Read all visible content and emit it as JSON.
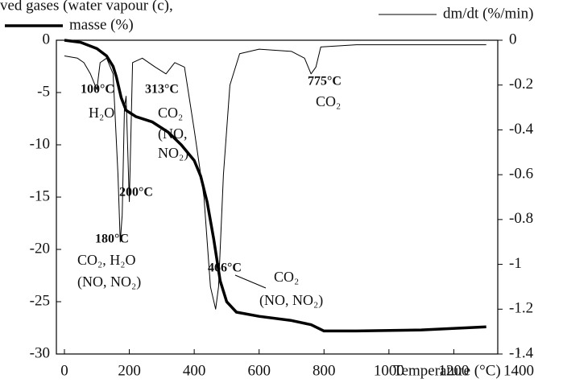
{
  "chart_data": {
    "type": "line",
    "title": "ved gases (water vapour (c), ",
    "x_label": "Temperature (°C)",
    "xlim": [
      0,
      1400
    ],
    "xticks": [
      0,
      200,
      400,
      600,
      800,
      1000,
      1200,
      1400
    ],
    "ylim": [
      -30,
      0
    ],
    "yticks": [
      0,
      -5,
      -10,
      -15,
      -20,
      -25,
      -30
    ],
    "y2lim": [
      -1.4,
      0
    ],
    "y2ticks": [
      0,
      -0.2,
      -0.4,
      -0.6,
      -0.8,
      -1,
      -1.2,
      -1.4
    ],
    "series": [
      {
        "name": "masse (%)",
        "color": "#000000",
        "line_width": 3.5,
        "x": [
          0,
          50,
          100,
          130,
          150,
          160,
          175,
          190,
          220,
          270,
          320,
          360,
          400,
          420,
          440,
          460,
          480,
          500,
          530,
          600,
          700,
          760,
          800,
          900,
          1100,
          1300
        ],
        "values": [
          0,
          -0.2,
          -0.8,
          -1.5,
          -2.5,
          -3.5,
          -5.5,
          -6.7,
          -7.3,
          -7.8,
          -8.8,
          -10,
          -11.5,
          -13,
          -15.5,
          -19,
          -23,
          -25,
          -26,
          -26.4,
          -26.8,
          -27.2,
          -27.8,
          -27.8,
          -27.7,
          -27.4
        ]
      },
      {
        "name": "dm/dt (%/min)",
        "color": "#000000",
        "line_width": 1,
        "axis": "y2",
        "x": [
          0,
          40,
          60,
          80,
          100,
          110,
          130,
          150,
          165,
          172,
          178,
          185,
          190,
          200,
          210,
          240,
          280,
          313,
          340,
          370,
          400,
          430,
          450,
          466,
          475,
          490,
          510,
          540,
          600,
          700,
          740,
          760,
          775,
          790,
          900,
          1000,
          1200,
          1300
        ],
        "values": [
          -0.07,
          -0.08,
          -0.1,
          -0.15,
          -0.22,
          -0.1,
          -0.08,
          -0.15,
          -0.6,
          -0.9,
          -0.78,
          -0.3,
          -0.25,
          -0.72,
          -0.1,
          -0.08,
          -0.12,
          -0.15,
          -0.1,
          -0.12,
          -0.4,
          -0.7,
          -1.1,
          -1.2,
          -1.1,
          -0.6,
          -0.2,
          -0.06,
          -0.04,
          -0.05,
          -0.08,
          -0.15,
          -0.12,
          -0.03,
          -0.02,
          -0.02,
          -0.02,
          -0.02
        ]
      }
    ],
    "annotations": [
      "100°C",
      "H₂O",
      "313°C",
      "CO₂",
      "(NO,",
      "NO₂)",
      "775°C",
      "CO₂",
      "200°C",
      "180°C",
      "CO₂, H₂O",
      "(NO, NO₂)",
      "466°C",
      "CO₂",
      "(NO, NO₂)"
    ]
  }
}
